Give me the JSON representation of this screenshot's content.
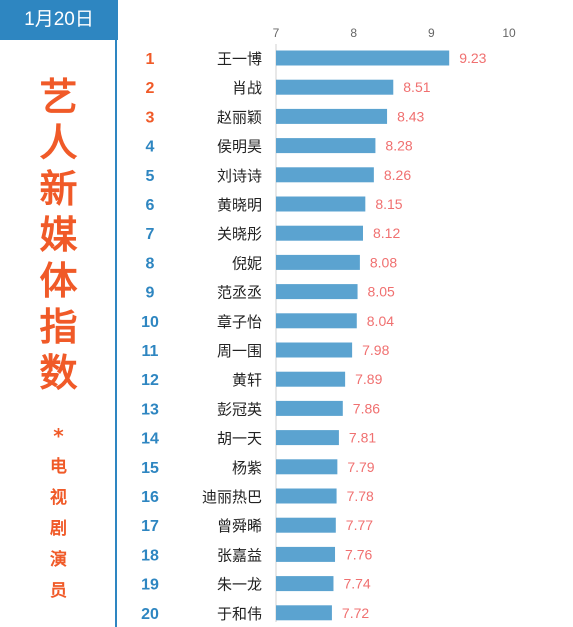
{
  "date_label": "1月20日",
  "title_chars": [
    "艺",
    "人",
    "新",
    "媒",
    "体",
    "指",
    "数"
  ],
  "sub_star": "*",
  "sub_chars": [
    "电",
    "视",
    "剧",
    "演",
    "员"
  ],
  "colors": {
    "badge": "#2e86c1",
    "title": "#f05a28",
    "rank_top3": "#f05a28",
    "rank_rest": "#2e86c1",
    "bar": "#5ba3d0",
    "value_label": "#f07070",
    "axis_text": "#666666"
  },
  "chart_data": {
    "type": "bar",
    "orientation": "horizontal",
    "xlim": [
      7,
      10
    ],
    "x_ticks": [
      "7",
      "8",
      "9",
      "10"
    ],
    "ranks": [
      "1",
      "2",
      "3",
      "4",
      "5",
      "6",
      "7",
      "8",
      "9",
      "10",
      "11",
      "12",
      "13",
      "14",
      "15",
      "16",
      "17",
      "18",
      "19",
      "20"
    ],
    "categories": [
      "王一博",
      "肖战",
      "赵丽颖",
      "侯明昊",
      "刘诗诗",
      "黄晓明",
      "关晓彤",
      "倪妮",
      "范丞丞",
      "章子怡",
      "周一围",
      "黄轩",
      "彭冠英",
      "胡一天",
      "杨紫",
      "迪丽热巴",
      "曾舜晞",
      "张嘉益",
      "朱一龙",
      "于和伟"
    ],
    "values": [
      9.23,
      8.51,
      8.43,
      8.28,
      8.26,
      8.15,
      8.12,
      8.08,
      8.05,
      8.04,
      7.98,
      7.89,
      7.86,
      7.81,
      7.79,
      7.78,
      7.77,
      7.76,
      7.74,
      7.72
    ],
    "value_labels": [
      "9.23",
      "8.51",
      "8.43",
      "8.28",
      "8.26",
      "8.15",
      "8.12",
      "8.08",
      "8.05",
      "8.04",
      "7.98",
      "7.89",
      "7.86",
      "7.81",
      "7.79",
      "7.78",
      "7.77",
      "7.76",
      "7.74",
      "7.72"
    ],
    "grid": false
  }
}
